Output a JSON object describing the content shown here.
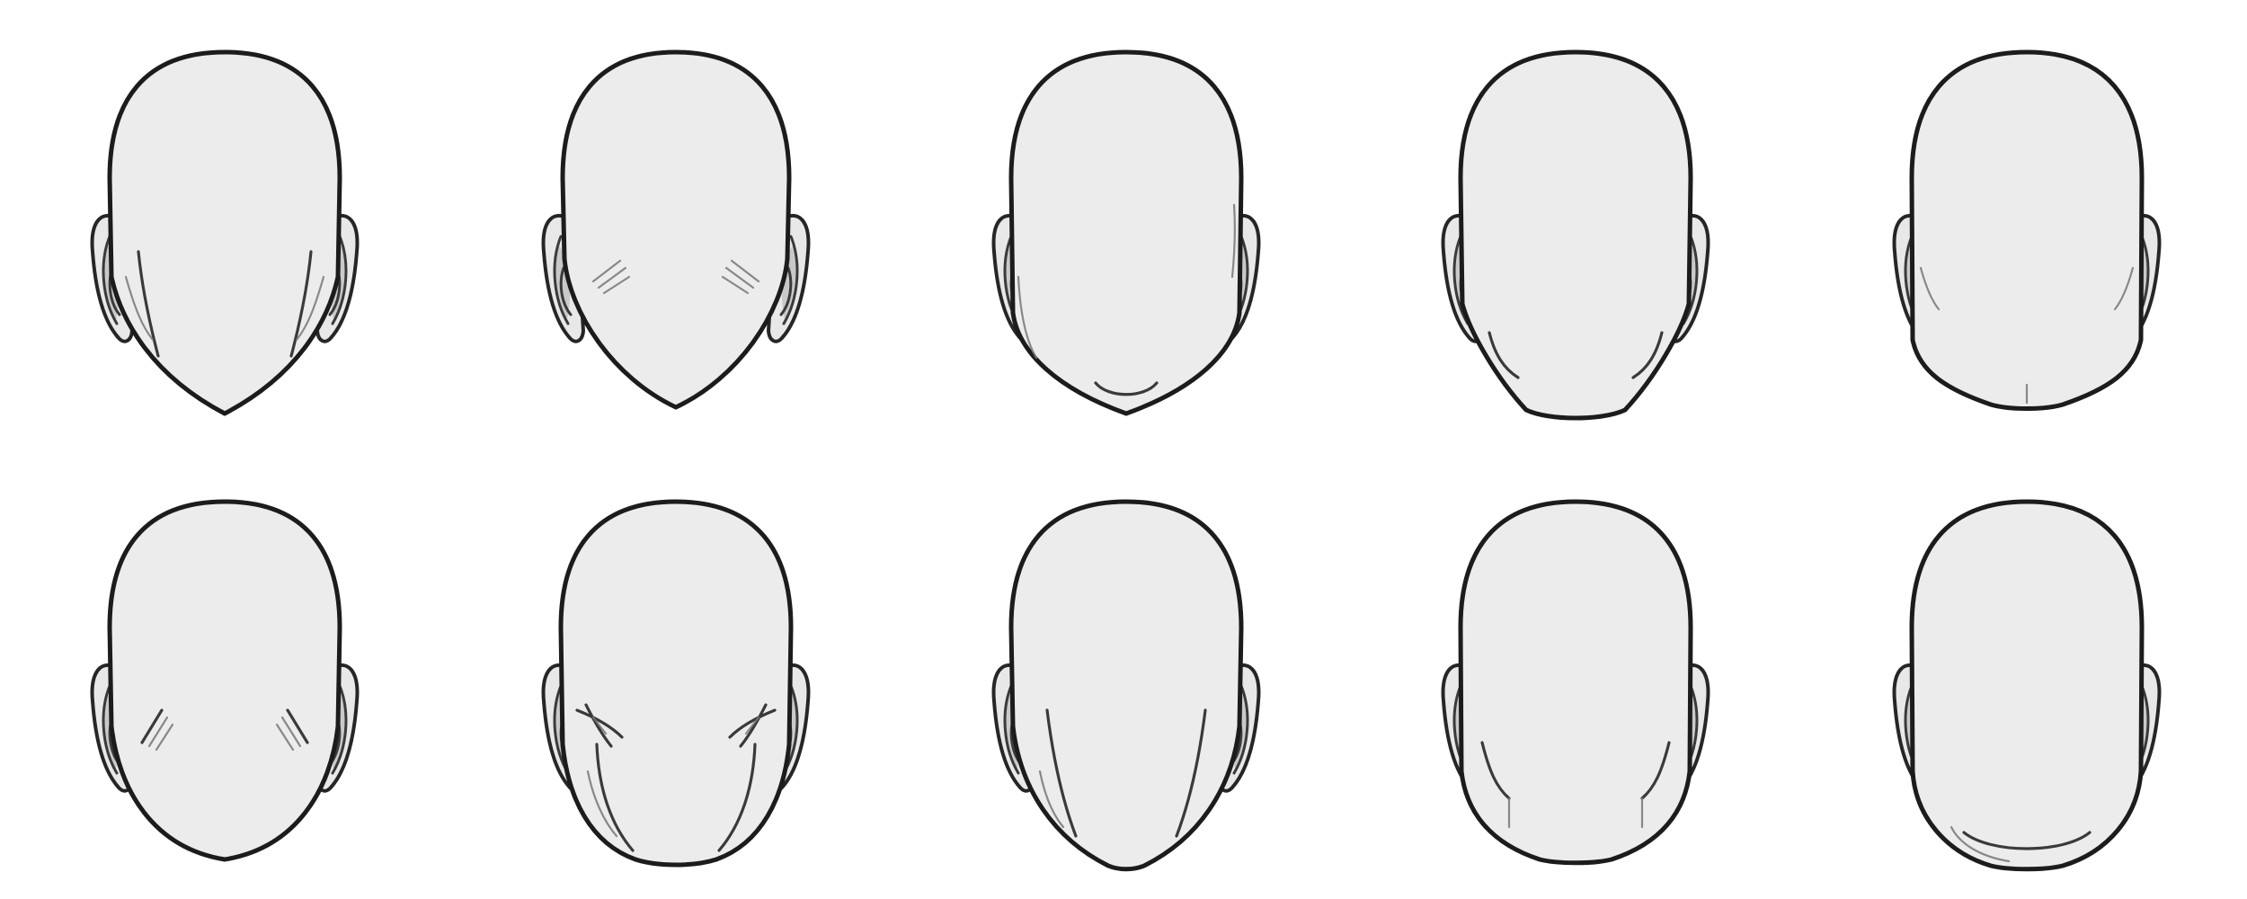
{
  "sheet": {
    "rows": 2,
    "columns": 5,
    "background_color": "#ffffff",
    "skin_color": "#ececec",
    "line_color": "#1c1c1c",
    "heads": [
      {
        "row": 1,
        "column": 1,
        "jaw": "wide-oval",
        "shading": "jaw-lines"
      },
      {
        "row": 1,
        "column": 2,
        "jaw": "narrow-oval",
        "shading": "cheek-hatching"
      },
      {
        "row": 1,
        "column": 3,
        "jaw": "rounded-square",
        "shading": "chin-curve"
      },
      {
        "row": 1,
        "column": 4,
        "jaw": "tapered",
        "shading": "jaw-lines"
      },
      {
        "row": 1,
        "column": 5,
        "jaw": "square",
        "shading": "chin-cleft"
      },
      {
        "row": 2,
        "column": 1,
        "jaw": "round",
        "shading": "cheek-hatching"
      },
      {
        "row": 2,
        "column": 2,
        "jaw": "bony",
        "shading": "heavy-hatching"
      },
      {
        "row": 2,
        "column": 3,
        "jaw": "long-tapered",
        "shading": "jaw-lines"
      },
      {
        "row": 2,
        "column": 4,
        "jaw": "square-wide",
        "shading": "jaw-lines"
      },
      {
        "row": 2,
        "column": 5,
        "jaw": "wide-rounded",
        "shading": "chin-curve"
      }
    ]
  }
}
